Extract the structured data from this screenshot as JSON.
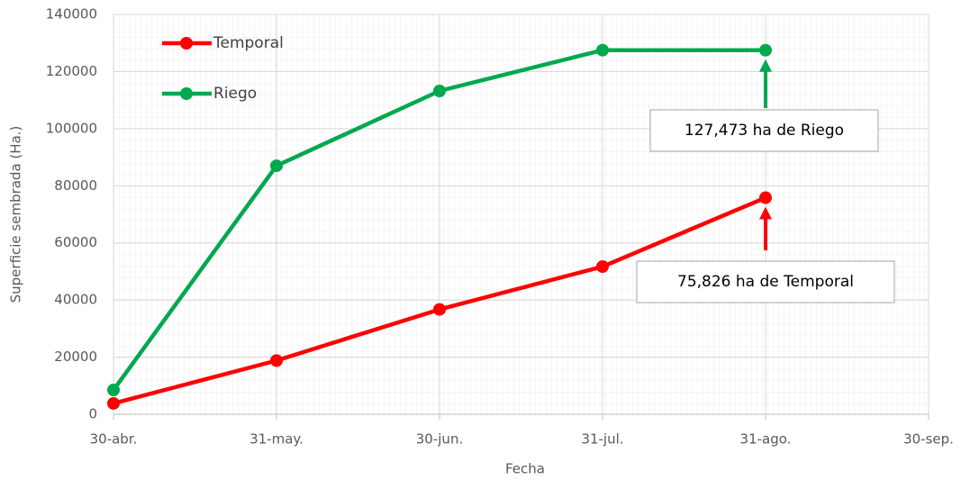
{
  "chart_data": {
    "type": "line",
    "x_label": "Fecha",
    "y_label": "Superficie sembrada (Ha.)",
    "categories": [
      "30-abr.",
      "31-may.",
      "30-jun.",
      "31-jul.",
      "31-ago.",
      "30-sep."
    ],
    "series": [
      {
        "name": "Temporal",
        "color": "#ff0000",
        "values": [
          3800,
          18800,
          36700,
          51700,
          75826,
          null
        ]
      },
      {
        "name": "Riego",
        "color": "#00a84f",
        "values": [
          8500,
          87000,
          113200,
          127473,
          127473,
          null
        ]
      }
    ],
    "ylim": [
      0,
      140000
    ],
    "yticks": [
      0,
      20000,
      40000,
      60000,
      80000,
      100000,
      120000,
      140000
    ],
    "grid": true,
    "legend": "upper left",
    "annotations": [
      {
        "text": "127,473 ha de Riego",
        "series": 1,
        "point": 4
      },
      {
        "text": "75,826 ha de Temporal",
        "series": 0,
        "point": 4
      }
    ]
  }
}
